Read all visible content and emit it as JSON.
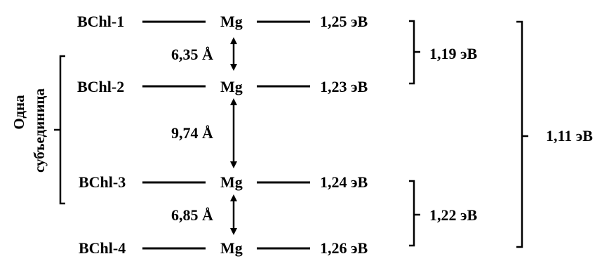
{
  "levels": [
    {
      "name": "BChl-1",
      "atom": "Mg",
      "energy": "1,25 эВ"
    },
    {
      "name": "BChl-2",
      "atom": "Mg",
      "energy": "1,23 эВ"
    },
    {
      "name": "BChl-3",
      "atom": "Mg",
      "energy": "1,24 эВ"
    },
    {
      "name": "BChl-4",
      "atom": "Mg",
      "energy": "1,26 эВ"
    }
  ],
  "distances": [
    {
      "label": "6,35 Å",
      "between": "BChl-1 – BChl-2"
    },
    {
      "label": "9,74 Å",
      "between": "BChl-2 – BChl-3"
    },
    {
      "label": "6,85 Å",
      "between": "BChl-3 – BChl-4"
    }
  ],
  "subunit": {
    "line1": "Одна",
    "line2": "субъединица"
  },
  "pair_energies": [
    {
      "label": "1,19 эВ",
      "pair": "BChl-1 + BChl-2"
    },
    {
      "label": "1,22 эВ",
      "pair": "BChl-3 + BChl-4"
    }
  ],
  "total_energy": {
    "label": "1,11 эВ",
    "group": "BChl-1 … BChl-4"
  },
  "colors": {
    "ink": "#000000",
    "background": "#ffffff"
  }
}
